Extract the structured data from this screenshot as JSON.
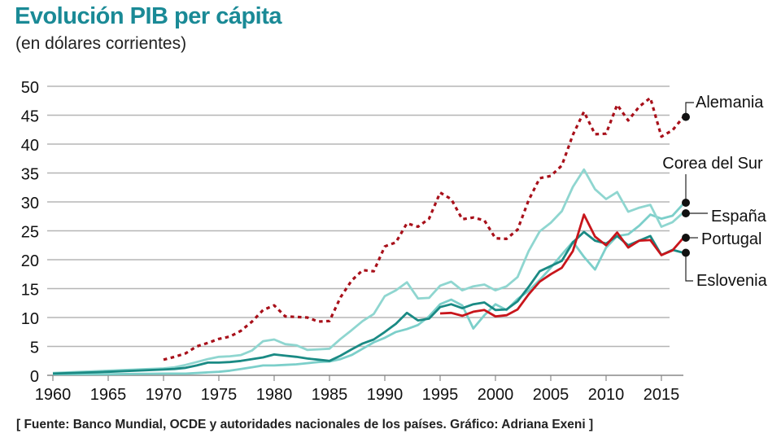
{
  "header": {
    "title": "Evolución PIB per cápita",
    "subtitle": "(en dólares corrientes)"
  },
  "footer": "[ Fuente: Banco Mundial, OCDE y autoridades nacionales de los países. Gráfico: Adriana Exeni ]",
  "chart_data": {
    "type": "line",
    "title": "Evolución PIB per cápita",
    "subtitle": "(en dólares corrientes)",
    "xlabel": "",
    "ylabel": "",
    "xlim": [
      1960,
      2017
    ],
    "ylim": [
      0,
      50
    ],
    "grid": true,
    "x_ticks": [
      1960,
      1965,
      1970,
      1975,
      1980,
      1985,
      1990,
      1995,
      2000,
      2005,
      2010,
      2015
    ],
    "y_ticks": [
      0,
      5,
      10,
      15,
      20,
      25,
      30,
      35,
      40,
      45,
      50
    ],
    "units": "miles de dólares",
    "legend": "right-end labels",
    "series": [
      {
        "name": "Alemania",
        "color": "#a8101a",
        "style": "dotted",
        "x": [
          1970,
          1971,
          1972,
          1973,
          1974,
          1975,
          1976,
          1977,
          1978,
          1979,
          1980,
          1981,
          1982,
          1983,
          1984,
          1985,
          1986,
          1987,
          1988,
          1989,
          1990,
          1991,
          1992,
          1993,
          1994,
          1995,
          1996,
          1997,
          1998,
          1999,
          2000,
          2001,
          2002,
          2003,
          2004,
          2005,
          2006,
          2007,
          2008,
          2009,
          2010,
          2011,
          2012,
          2013,
          2014,
          2015,
          2016,
          2017
        ],
        "values": [
          2.7,
          3.2,
          3.8,
          5.0,
          5.6,
          6.3,
          6.7,
          7.7,
          9.3,
          11.3,
          12.1,
          10.2,
          10.1,
          10.0,
          9.3,
          9.4,
          13.5,
          16.4,
          18.2,
          18.0,
          22.3,
          23.0,
          26.3,
          25.7,
          27.1,
          31.6,
          30.5,
          27.0,
          27.3,
          26.8,
          23.7,
          23.6,
          25.2,
          30.3,
          34.1,
          34.5,
          36.3,
          41.6,
          45.6,
          41.7,
          41.8,
          46.8,
          44.1,
          46.5,
          48.0,
          41.3,
          42.4,
          44.7
        ]
      },
      {
        "name": "Corea del Sur",
        "color": "#7ccfca",
        "style": "solid",
        "x": [
          1960,
          1965,
          1970,
          1971,
          1972,
          1973,
          1974,
          1975,
          1976,
          1977,
          1978,
          1979,
          1980,
          1981,
          1982,
          1983,
          1984,
          1985,
          1986,
          1987,
          1988,
          1989,
          1990,
          1991,
          1992,
          1993,
          1994,
          1995,
          1996,
          1997,
          1998,
          1999,
          2000,
          2001,
          2002,
          2003,
          2004,
          2005,
          2006,
          2007,
          2008,
          2009,
          2010,
          2011,
          2012,
          2013,
          2014,
          2015,
          2016,
          2017
        ],
        "values": [
          0.2,
          0.2,
          0.3,
          0.3,
          0.3,
          0.4,
          0.5,
          0.6,
          0.8,
          1.1,
          1.4,
          1.7,
          1.7,
          1.8,
          1.9,
          2.1,
          2.3,
          2.4,
          2.8,
          3.5,
          4.6,
          5.7,
          6.5,
          7.5,
          8.0,
          8.7,
          10.2,
          12.3,
          13.1,
          12.1,
          8.1,
          10.4,
          12.3,
          11.3,
          13.2,
          14.6,
          16.5,
          18.6,
          20.9,
          23.1,
          20.5,
          18.3,
          22.1,
          24.1,
          24.4,
          25.9,
          27.8,
          27.1,
          27.6,
          29.7
        ]
      },
      {
        "name": "España",
        "color": "#8fd6d0",
        "style": "solid",
        "x": [
          1960,
          1965,
          1970,
          1971,
          1972,
          1973,
          1974,
          1975,
          1976,
          1977,
          1978,
          1979,
          1980,
          1981,
          1982,
          1983,
          1984,
          1985,
          1986,
          1987,
          1988,
          1989,
          1990,
          1991,
          1992,
          1993,
          1994,
          1995,
          1996,
          1997,
          1998,
          1999,
          2000,
          2001,
          2002,
          2003,
          2004,
          2005,
          2006,
          2007,
          2008,
          2009,
          2010,
          2011,
          2012,
          2013,
          2014,
          2015,
          2016,
          2017
        ],
        "values": [
          0.4,
          0.8,
          1.2,
          1.4,
          1.8,
          2.3,
          2.8,
          3.2,
          3.3,
          3.5,
          4.3,
          5.9,
          6.2,
          5.4,
          5.2,
          4.4,
          4.5,
          4.6,
          6.3,
          7.8,
          9.4,
          10.6,
          13.7,
          14.7,
          16.1,
          13.3,
          13.4,
          15.5,
          16.2,
          14.7,
          15.4,
          15.7,
          14.7,
          15.4,
          17.0,
          21.5,
          24.9,
          26.4,
          28.4,
          32.6,
          35.6,
          32.2,
          30.5,
          31.7,
          28.3,
          29.0,
          29.5,
          25.7,
          26.5,
          28.2
        ]
      },
      {
        "name": "Portugal",
        "color": "#c8151b",
        "style": "solid",
        "x": [
          1995,
          1996,
          1997,
          1998,
          1999,
          2000,
          2001,
          2002,
          2003,
          2004,
          2005,
          2006,
          2007,
          2008,
          2009,
          2010,
          2011,
          2012,
          2013,
          2014,
          2015,
          2016,
          2017
        ],
        "values": [
          10.7,
          10.8,
          10.3,
          11.0,
          11.3,
          10.2,
          10.4,
          11.4,
          14.0,
          16.2,
          17.5,
          18.6,
          21.5,
          27.8,
          24.0,
          22.5,
          24.7,
          22.1,
          23.3,
          23.4,
          20.8,
          21.6,
          23.8
        ]
      },
      {
        "name": "Eslovenia",
        "color": "#1a8a84",
        "style": "solid",
        "x": [
          1960,
          1965,
          1970,
          1971,
          1972,
          1973,
          1974,
          1975,
          1976,
          1977,
          1978,
          1979,
          1980,
          1981,
          1982,
          1983,
          1984,
          1985,
          1986,
          1987,
          1988,
          1989,
          1990,
          1991,
          1992,
          1993,
          1994,
          1995,
          1996,
          1997,
          1998,
          1999,
          2000,
          2001,
          2002,
          2003,
          2004,
          2005,
          2006,
          2007,
          2008,
          2009,
          2010,
          2011,
          2012,
          2013,
          2014,
          2015,
          2016,
          2017
        ],
        "values": [
          0.3,
          0.6,
          1.0,
          1.1,
          1.3,
          1.7,
          2.2,
          2.2,
          2.3,
          2.5,
          2.8,
          3.1,
          3.6,
          3.4,
          3.2,
          2.9,
          2.7,
          2.5,
          3.4,
          4.5,
          5.5,
          6.2,
          7.5,
          8.9,
          10.8,
          9.5,
          9.8,
          11.8,
          12.3,
          11.6,
          12.3,
          12.6,
          11.3,
          11.4,
          12.8,
          15.3,
          18.0,
          18.9,
          19.8,
          23.0,
          24.8,
          23.3,
          22.8,
          24.1,
          22.5,
          23.3,
          24.1,
          20.8,
          21.7,
          21.2
        ]
      }
    ]
  }
}
